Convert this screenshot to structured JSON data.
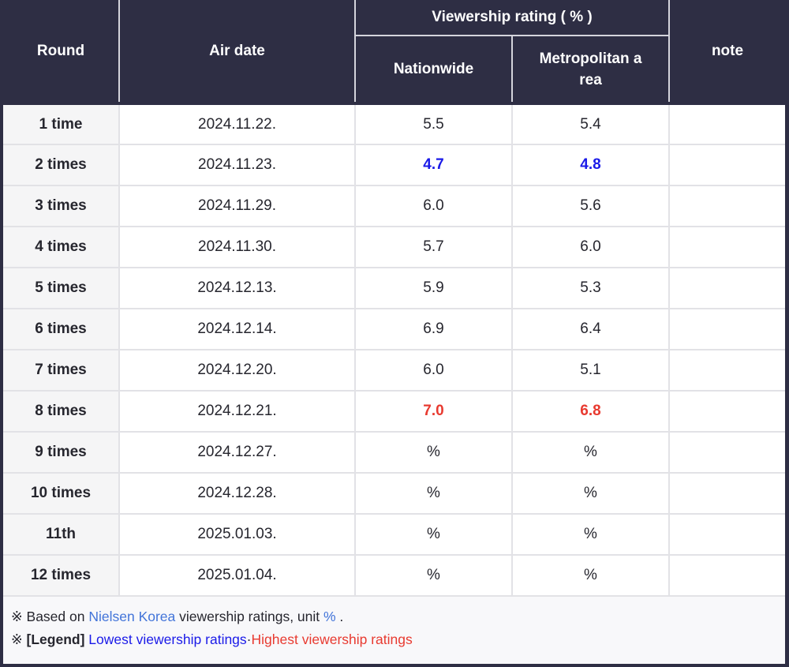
{
  "colors": {
    "header_bg": "#2e2e44",
    "min_blue": "#1a1ae8",
    "max_red": "#e83a30",
    "link_blue": "#4274d9",
    "round_col_bg": "#f5f5f6",
    "footer_bg": "#f8f8fa"
  },
  "table": {
    "headers": {
      "round": "Round",
      "air_date": "Air date",
      "rating_group": "Viewership rating ( % )",
      "nationwide": "Nationwide",
      "metropolitan": "Metropolitan a\nrea",
      "note": "note"
    },
    "rows": [
      {
        "round": "1 time",
        "date": "2024.11.22.",
        "nationwide": "5.5",
        "metro": "5.4",
        "note": "",
        "highlight": null
      },
      {
        "round": "2 times",
        "date": "2024.11.23.",
        "nationwide": "4.7",
        "metro": "4.8",
        "note": "",
        "highlight": "min"
      },
      {
        "round": "3 times",
        "date": "2024.11.29.",
        "nationwide": "6.0",
        "metro": "5.6",
        "note": "",
        "highlight": null
      },
      {
        "round": "4 times",
        "date": "2024.11.30.",
        "nationwide": "5.7",
        "metro": "6.0",
        "note": "",
        "highlight": null
      },
      {
        "round": "5 times",
        "date": "2024.12.13.",
        "nationwide": "5.9",
        "metro": "5.3",
        "note": "",
        "highlight": null
      },
      {
        "round": "6 times",
        "date": "2024.12.14.",
        "nationwide": "6.9",
        "metro": "6.4",
        "note": "",
        "highlight": null
      },
      {
        "round": "7 times",
        "date": "2024.12.20.",
        "nationwide": "6.0",
        "metro": "5.1",
        "note": "",
        "highlight": null
      },
      {
        "round": "8 times",
        "date": "2024.12.21.",
        "nationwide": "7.0",
        "metro": "6.8",
        "note": "",
        "highlight": "max"
      },
      {
        "round": "9 times",
        "date": "2024.12.27.",
        "nationwide": "%",
        "metro": "%",
        "note": "",
        "highlight": null
      },
      {
        "round": "10 times",
        "date": "2024.12.28.",
        "nationwide": "%",
        "metro": "%",
        "note": "",
        "highlight": null
      },
      {
        "round": "11th",
        "date": "2025.01.03.",
        "nationwide": "%",
        "metro": "%",
        "note": "",
        "highlight": null
      },
      {
        "round": "12 times",
        "date": "2025.01.04.",
        "nationwide": "%",
        "metro": "%",
        "note": "",
        "highlight": null
      }
    ]
  },
  "footer": {
    "lines": [
      {
        "segments": [
          {
            "text": "※ Based on ",
            "style": "plain"
          },
          {
            "text": "Nielsen Korea",
            "style": "link",
            "name": "nielsen-korea-link"
          },
          {
            "text": " viewership ratings, unit ",
            "style": "plain"
          },
          {
            "text": "%",
            "style": "link",
            "name": "unit-percent-link"
          },
          {
            "text": " .",
            "style": "plain"
          }
        ]
      },
      {
        "segments": [
          {
            "text": "※ ",
            "style": "plain"
          },
          {
            "text": "[Legend]",
            "style": "bold"
          },
          {
            "text": " ",
            "style": "plain"
          },
          {
            "text": "Lowest viewership ratings",
            "style": "blue",
            "name": "lowest-ratings-legend"
          },
          {
            "text": "·",
            "style": "plain"
          },
          {
            "text": "Highest viewership ratings",
            "style": "red",
            "name": "highest-ratings-legend"
          }
        ]
      }
    ]
  },
  "chart_data": {
    "type": "table",
    "title": "Viewership rating ( % )",
    "columns": [
      "Round",
      "Air date",
      "Nationwide",
      "Metropolitan area",
      "note"
    ],
    "rows": [
      [
        "1 time",
        "2024.11.22.",
        "5.5",
        "5.4",
        ""
      ],
      [
        "2 times",
        "2024.11.23.",
        "4.7",
        "4.8",
        ""
      ],
      [
        "3 times",
        "2024.11.29.",
        "6.0",
        "5.6",
        ""
      ],
      [
        "4 times",
        "2024.11.30.",
        "5.7",
        "6.0",
        ""
      ],
      [
        "5 times",
        "2024.12.13.",
        "5.9",
        "5.3",
        ""
      ],
      [
        "6 times",
        "2024.12.14.",
        "6.9",
        "6.4",
        ""
      ],
      [
        "7 times",
        "2024.12.20.",
        "6.0",
        "5.1",
        ""
      ],
      [
        "8 times",
        "2024.12.21.",
        "7.0",
        "6.8",
        ""
      ],
      [
        "9 times",
        "2024.12.27.",
        "%",
        "%",
        ""
      ],
      [
        "10 times",
        "2024.12.28.",
        "%",
        "%",
        ""
      ],
      [
        "11th",
        "2025.01.03.",
        "%",
        "%",
        ""
      ],
      [
        "12 times",
        "2025.01.04.",
        "%",
        "%",
        ""
      ]
    ],
    "highlights": {
      "lowest": {
        "row": "2 times",
        "values": [
          "4.7",
          "4.8"
        ],
        "color": "#1a1ae8"
      },
      "highest": {
        "row": "8 times",
        "values": [
          "7.0",
          "6.8"
        ],
        "color": "#e83a30"
      }
    },
    "annotations": [
      "※ Based on Nielsen Korea viewership ratings, unit % .",
      "※ [Legend] Lowest viewership ratings·Highest viewership ratings"
    ]
  }
}
